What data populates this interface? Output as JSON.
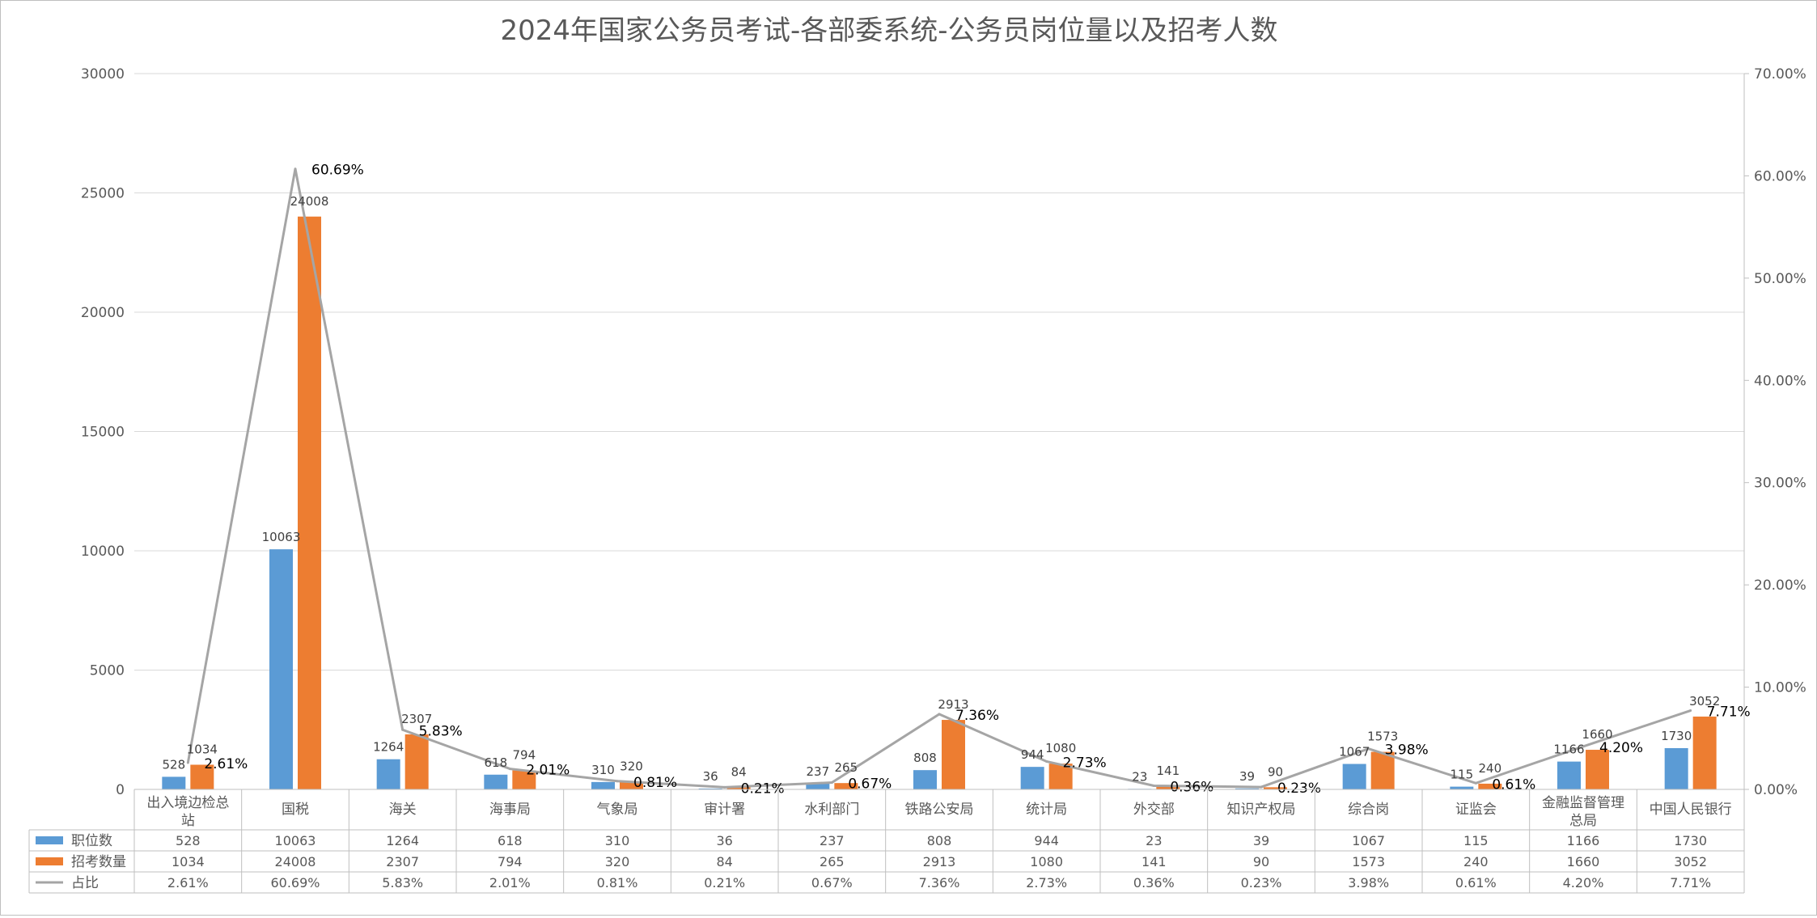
{
  "chart_data": {
    "type": "bar",
    "title": "2024年国家公务员考试-各部委系统-公务员岗位量以及招考人数",
    "categories": [
      "出入境边检总站",
      "国税",
      "海关",
      "海事局",
      "气象局",
      "审计署",
      "水利部门",
      "铁路公安局",
      "统计局",
      "外交部",
      "知识产权局",
      "综合岗",
      "证监会",
      "金融监督管理总局",
      "中国人民银行"
    ],
    "series": [
      {
        "name": "职位数",
        "kind": "bar",
        "axis": "left",
        "color": "#5b9bd5",
        "values": [
          528,
          10063,
          1264,
          618,
          310,
          36,
          237,
          808,
          944,
          23,
          39,
          1067,
          115,
          1166,
          1730
        ],
        "labels": [
          "528",
          "10063",
          "1264",
          "618",
          "310",
          "36",
          "237",
          "808",
          "944",
          "23",
          "39",
          "1067",
          "115",
          "1166",
          "1730"
        ]
      },
      {
        "name": "招考数量",
        "kind": "bar",
        "axis": "left",
        "color": "#ed7d31",
        "values": [
          1034,
          24008,
          2307,
          794,
          320,
          84,
          265,
          2913,
          1080,
          141,
          90,
          1573,
          240,
          1660,
          3052
        ],
        "labels": [
          "1034",
          "24008",
          "2307",
          "794",
          "320",
          "84",
          "265",
          "2913",
          "1080",
          "141",
          "90",
          "1573",
          "240",
          "1660",
          "3052"
        ]
      },
      {
        "name": "占比",
        "kind": "line",
        "axis": "right",
        "color": "#a5a5a5",
        "values": [
          2.61,
          60.69,
          5.83,
          2.01,
          0.81,
          0.21,
          0.67,
          7.36,
          2.73,
          0.36,
          0.23,
          3.98,
          0.61,
          4.2,
          7.71
        ],
        "labels": [
          "2.61%",
          "60.69%",
          "5.83%",
          "2.01%",
          "0.81%",
          "0.21%",
          "0.67%",
          "7.36%",
          "2.73%",
          "0.36%",
          "0.23%",
          "3.98%",
          "0.61%",
          "4.20%",
          "7.71%"
        ]
      }
    ],
    "y_left": {
      "min": 0,
      "max": 30000,
      "ticks": [
        "0",
        "5000",
        "10000",
        "15000",
        "20000",
        "25000",
        "30000"
      ]
    },
    "y_right": {
      "min": 0,
      "max": 70,
      "ticks": [
        "0.00%",
        "10.00%",
        "20.00%",
        "30.00%",
        "40.00%",
        "50.00%",
        "60.00%",
        "70.00%"
      ]
    },
    "grid": true,
    "legend": "data-table"
  }
}
